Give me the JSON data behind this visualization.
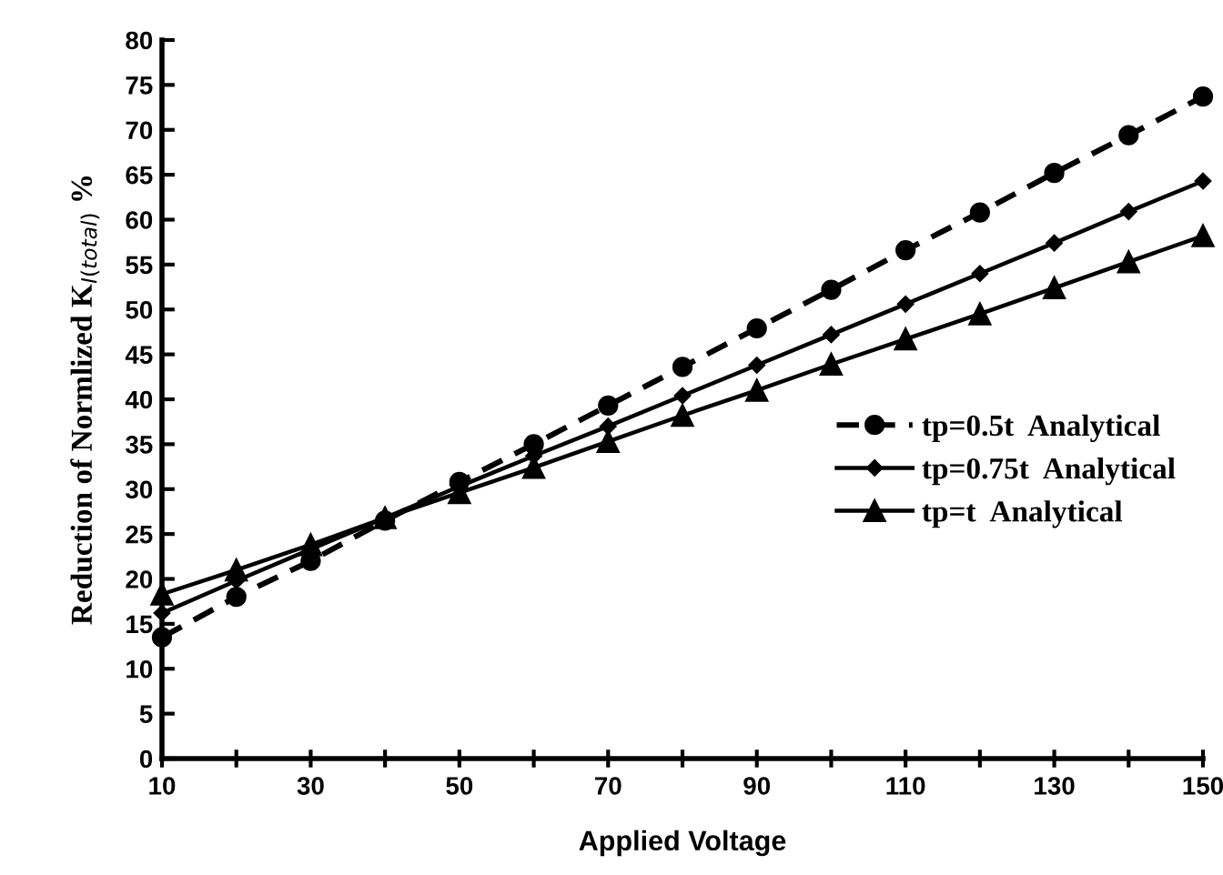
{
  "chart_data": {
    "type": "line",
    "xlabel": "Applied Voltage",
    "ylabel": "Reduction of Normlized K$_{I(total)}$ %",
    "x": [
      10,
      20,
      30,
      40,
      50,
      60,
      70,
      80,
      90,
      100,
      110,
      120,
      130,
      140,
      150
    ],
    "series": [
      {
        "name": "tp=0.5t  Analytical",
        "color": "#000000",
        "marker": "circle",
        "line_style": "dashed",
        "values": [
          13.5,
          18,
          22,
          26.5,
          30.8,
          35,
          39.3,
          43.6,
          47.9,
          52.2,
          56.6,
          60.8,
          65.2,
          69.4,
          73.7
        ]
      },
      {
        "name": "tp=0.75t  Analytical",
        "color": "#000000",
        "marker": "diamond",
        "line_style": "solid",
        "values": [
          16.2,
          19.8,
          23.3,
          26.8,
          30.3,
          33.7,
          37,
          40.4,
          43.8,
          47.2,
          50.6,
          54,
          57.4,
          60.9,
          64.3
        ]
      },
      {
        "name": "tp=t  Analytical",
        "color": "#000000",
        "marker": "triangle",
        "line_style": "solid",
        "values": [
          18.3,
          21,
          23.8,
          26.8,
          29.6,
          32.4,
          35.3,
          38.2,
          41,
          43.9,
          46.7,
          49.5,
          52.4,
          55.3,
          58.2
        ]
      }
    ],
    "xlim": [
      10,
      150
    ],
    "xticks": [
      10,
      {
        "value": 20,
        "label": null
      },
      30,
      {
        "value": 40,
        "label": null
      },
      50,
      {
        "value": 60,
        "label": null
      },
      70,
      {
        "value": 80,
        "label": null
      },
      90,
      {
        "value": 100,
        "label": null
      },
      110,
      {
        "value": 120,
        "label": null
      },
      130,
      {
        "value": 140,
        "label": null
      },
      150
    ],
    "ylim": [
      0,
      80
    ],
    "yticks": [
      0,
      5,
      10,
      15,
      20,
      25,
      30,
      35,
      40,
      45,
      50,
      55,
      60,
      65,
      70,
      75,
      80
    ],
    "grid": false,
    "legend": "center right"
  }
}
